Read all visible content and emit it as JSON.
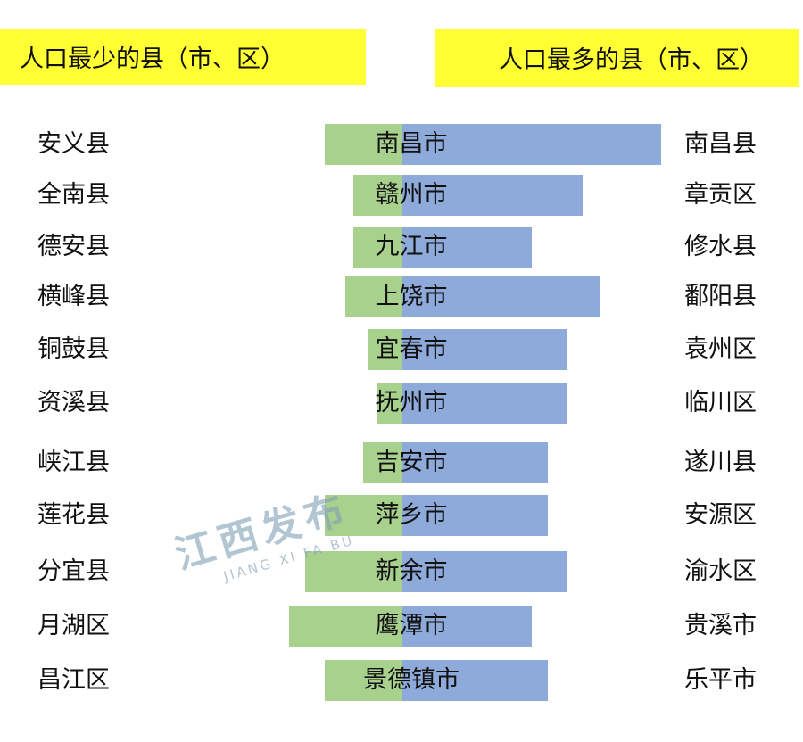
{
  "chart_data": {
    "type": "bar",
    "orientation": "horizontal-diverging",
    "left_header": "人口最少的县（市、区）",
    "right_header": "人口最多的县（市、区）",
    "categories": [
      "南昌市",
      "赣州市",
      "九江市",
      "上饶市",
      "宜春市",
      "抚州市",
      "吉安市",
      "萍乡市",
      "新余市",
      "鹰潭市",
      "景德镇市"
    ],
    "least_populous": [
      "安义县",
      "全南县",
      "德安县",
      "横峰县",
      "铜鼓县",
      "资溪县",
      "峡江县",
      "莲花县",
      "分宜县",
      "月湖区",
      "昌江区"
    ],
    "most_populous": [
      "南昌县",
      "章贡区",
      "修水县",
      "鄱阳县",
      "袁州区",
      "临川区",
      "遂川县",
      "安源区",
      "渝水区",
      "贵溪市",
      "乐平市"
    ],
    "series": [
      {
        "values_relative": [
          87,
          55,
          55,
          64,
          39,
          28,
          44,
          87,
          109,
          127,
          87
        ]
      },
      {
        "values_relative": [
          290,
          202,
          145,
          222,
          184,
          184,
          163,
          163,
          184,
          145,
          163
        ]
      }
    ],
    "colors": {
      "left_bar": "#a9d18e",
      "right_bar": "#8eaadb",
      "header_bg": "#ffff33"
    },
    "grid": false
  },
  "watermark": {
    "cn": "江西发布",
    "en": "JIANG XI FA BU"
  }
}
